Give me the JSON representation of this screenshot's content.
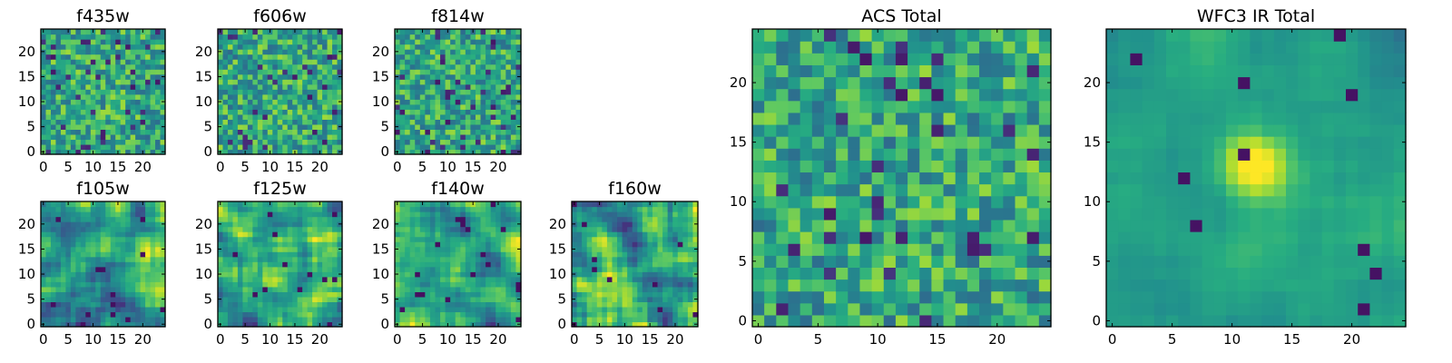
{
  "chart_data": [
    {
      "type": "heatmap",
      "title": "f435w",
      "colormap": "viridis",
      "xlim": [
        0,
        24
      ],
      "ylim": [
        0,
        24
      ],
      "xticks": [
        0,
        5,
        10,
        15,
        20
      ],
      "yticks": [
        0,
        5,
        10,
        15,
        20
      ],
      "pattern": "noise"
    },
    {
      "type": "heatmap",
      "title": "f606w",
      "colormap": "viridis",
      "xlim": [
        0,
        24
      ],
      "ylim": [
        0,
        24
      ],
      "xticks": [
        0,
        5,
        10,
        15,
        20
      ],
      "yticks": [
        0,
        5,
        10,
        15,
        20
      ],
      "pattern": "noise"
    },
    {
      "type": "heatmap",
      "title": "f814w",
      "colormap": "viridis",
      "xlim": [
        0,
        24
      ],
      "ylim": [
        0,
        24
      ],
      "xticks": [
        0,
        5,
        10,
        15,
        20
      ],
      "yticks": [
        0,
        5,
        10,
        15,
        20
      ],
      "pattern": "noise"
    },
    {
      "type": "heatmap",
      "title": "f105w",
      "colormap": "viridis",
      "xlim": [
        0,
        24
      ],
      "ylim": [
        0,
        24
      ],
      "xticks": [
        0,
        5,
        10,
        15,
        20
      ],
      "yticks": [
        0,
        5,
        10,
        15,
        20
      ],
      "pattern": "smooth"
    },
    {
      "type": "heatmap",
      "title": "f125w",
      "colormap": "viridis",
      "xlim": [
        0,
        24
      ],
      "ylim": [
        0,
        24
      ],
      "xticks": [
        0,
        5,
        10,
        15,
        20
      ],
      "yticks": [
        0,
        5,
        10,
        15,
        20
      ],
      "pattern": "smooth"
    },
    {
      "type": "heatmap",
      "title": "f140w",
      "colormap": "viridis",
      "xlim": [
        0,
        24
      ],
      "ylim": [
        0,
        24
      ],
      "xticks": [
        0,
        5,
        10,
        15,
        20
      ],
      "yticks": [
        0,
        5,
        10,
        15,
        20
      ],
      "pattern": "smooth"
    },
    {
      "type": "heatmap",
      "title": "f160w",
      "colormap": "viridis",
      "xlim": [
        0,
        24
      ],
      "ylim": [
        0,
        24
      ],
      "xticks": [
        0,
        5,
        10,
        15,
        20
      ],
      "yticks": [
        0,
        5,
        10,
        15,
        20
      ],
      "pattern": "smooth"
    },
    {
      "type": "heatmap",
      "title": "ACS Total",
      "colormap": "viridis",
      "xlim": [
        0,
        24
      ],
      "ylim": [
        0,
        24
      ],
      "xticks": [
        0,
        5,
        10,
        15,
        20
      ],
      "yticks": [
        0,
        5,
        10,
        15,
        20
      ],
      "pattern": "noise"
    },
    {
      "type": "heatmap",
      "title": "WFC3 IR Total",
      "colormap": "viridis",
      "xlim": [
        0,
        24
      ],
      "ylim": [
        0,
        24
      ],
      "xticks": [
        0,
        5,
        10,
        15,
        20
      ],
      "yticks": [
        0,
        5,
        10,
        15,
        20
      ],
      "pattern": "source",
      "peak_center": [
        12,
        13
      ]
    }
  ]
}
